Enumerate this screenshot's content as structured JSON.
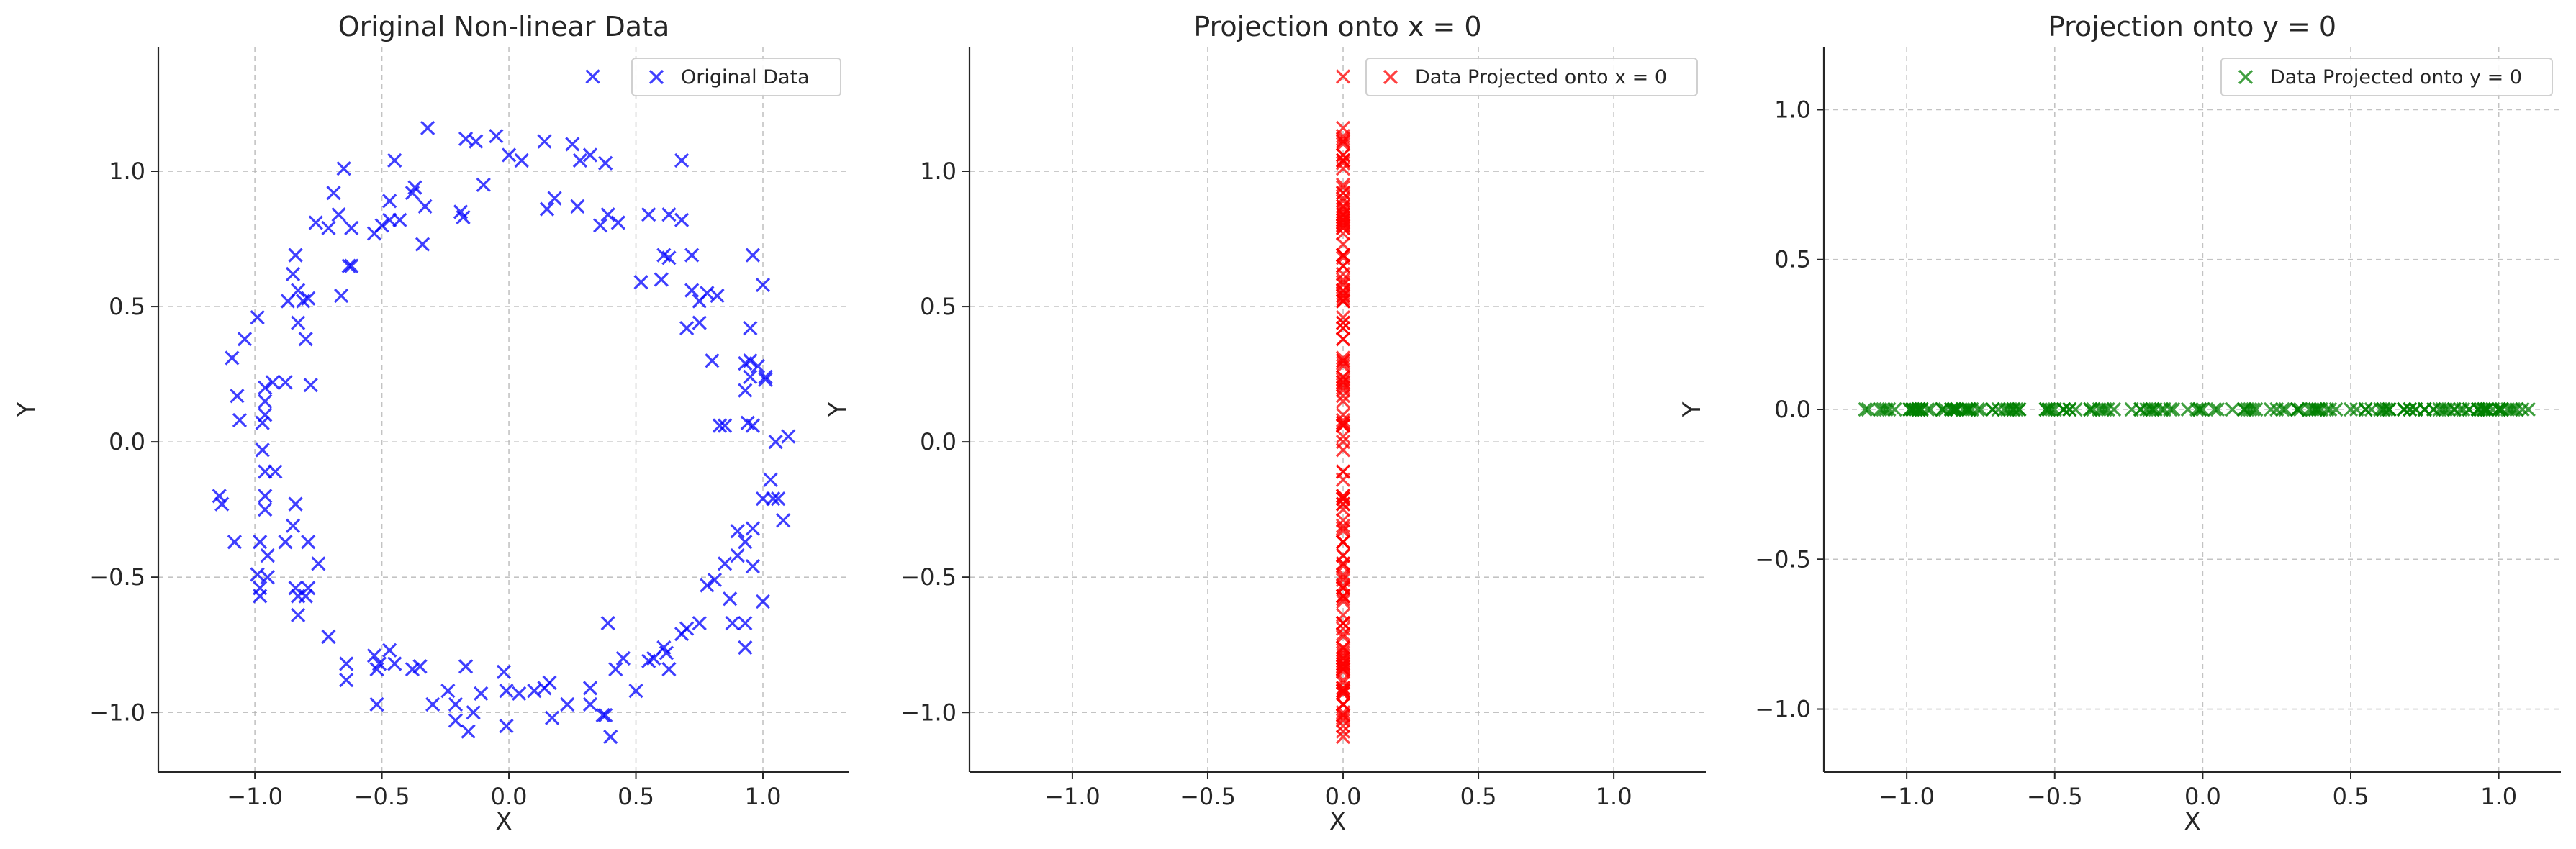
{
  "chart_data": [
    {
      "type": "scatter",
      "title": "Original Non-linear Data",
      "xlabel": "X",
      "ylabel": "Y",
      "xlim": [
        -1.38,
        1.34
      ],
      "ylim": [
        -1.22,
        1.46
      ],
      "xticks": [
        -1.0,
        -0.5,
        0.0,
        0.5,
        1.0
      ],
      "xtick_labels": [
        "−1.0",
        "−0.5",
        "0.0",
        "0.5",
        "1.0"
      ],
      "yticks": [
        -1.0,
        -0.5,
        0.0,
        0.5,
        1.0
      ],
      "ytick_labels": [
        "−1.0",
        "−0.5",
        "0.0",
        "0.5",
        "1.0"
      ],
      "grid": true,
      "legend_position": "top-right",
      "marker": "x",
      "series": [
        {
          "name": "Original Data",
          "color": "#0000ff",
          "points": [
            [
              0.33,
              1.35
            ],
            [
              -0.32,
              1.16
            ],
            [
              -0.17,
              1.12
            ],
            [
              -0.13,
              1.11
            ],
            [
              -0.05,
              1.13
            ],
            [
              0.05,
              1.04
            ],
            [
              0.0,
              1.06
            ],
            [
              0.14,
              1.11
            ],
            [
              0.25,
              1.1
            ],
            [
              0.28,
              1.04
            ],
            [
              0.32,
              1.06
            ],
            [
              0.38,
              1.03
            ],
            [
              0.68,
              1.04
            ],
            [
              -0.65,
              1.01
            ],
            [
              -0.45,
              1.04
            ],
            [
              -0.37,
              0.94
            ],
            [
              -0.33,
              0.87
            ],
            [
              -0.38,
              0.92
            ],
            [
              -0.19,
              0.85
            ],
            [
              -0.18,
              0.83
            ],
            [
              -0.1,
              0.95
            ],
            [
              0.15,
              0.86
            ],
            [
              0.18,
              0.9
            ],
            [
              0.27,
              0.87
            ],
            [
              0.36,
              0.8
            ],
            [
              0.39,
              0.84
            ],
            [
              0.43,
              0.81
            ],
            [
              0.55,
              0.84
            ],
            [
              0.63,
              0.84
            ],
            [
              0.68,
              0.82
            ],
            [
              -0.69,
              0.92
            ],
            [
              -0.67,
              0.84
            ],
            [
              -0.71,
              0.79
            ],
            [
              -0.62,
              0.79
            ],
            [
              -0.53,
              0.77
            ],
            [
              -0.5,
              0.8
            ],
            [
              -0.47,
              0.82
            ],
            [
              -0.43,
              0.82
            ],
            [
              -0.47,
              0.89
            ],
            [
              -0.34,
              0.73
            ],
            [
              -0.76,
              0.81
            ],
            [
              -0.62,
              0.65
            ],
            [
              -0.63,
              0.65
            ],
            [
              -0.66,
              0.54
            ],
            [
              0.52,
              0.59
            ],
            [
              0.6,
              0.6
            ],
            [
              0.61,
              0.69
            ],
            [
              0.63,
              0.68
            ],
            [
              0.72,
              0.69
            ],
            [
              0.72,
              0.56
            ],
            [
              0.75,
              0.52
            ],
            [
              0.78,
              0.55
            ],
            [
              0.82,
              0.54
            ],
            [
              0.7,
              0.42
            ],
            [
              0.75,
              0.44
            ],
            [
              0.8,
              0.3
            ],
            [
              -0.84,
              0.69
            ],
            [
              -0.85,
              0.62
            ],
            [
              -0.83,
              0.56
            ],
            [
              -0.87,
              0.52
            ],
            [
              -0.79,
              0.53
            ],
            [
              -0.81,
              0.52
            ],
            [
              -0.83,
              0.44
            ],
            [
              -0.8,
              0.38
            ],
            [
              -0.99,
              0.46
            ],
            [
              -1.04,
              0.38
            ],
            [
              -1.09,
              0.31
            ],
            [
              -0.96,
              0.2
            ],
            [
              -0.93,
              0.22
            ],
            [
              -0.88,
              0.22
            ],
            [
              -0.78,
              0.21
            ],
            [
              -1.07,
              0.17
            ],
            [
              -1.06,
              0.08
            ],
            [
              -0.96,
              0.15
            ],
            [
              -0.96,
              0.1
            ],
            [
              -0.97,
              0.07
            ],
            [
              -0.97,
              -0.03
            ],
            [
              -0.96,
              -0.11
            ],
            [
              -0.92,
              -0.11
            ],
            [
              -1.14,
              -0.2
            ],
            [
              -1.13,
              -0.23
            ],
            [
              -0.96,
              -0.2
            ],
            [
              -0.96,
              -0.25
            ],
            [
              -0.84,
              -0.23
            ],
            [
              -0.85,
              -0.31
            ],
            [
              -0.79,
              -0.37
            ],
            [
              -0.88,
              -0.37
            ],
            [
              -1.08,
              -0.37
            ],
            [
              -0.98,
              -0.37
            ],
            [
              -0.95,
              -0.42
            ],
            [
              -0.99,
              -0.49
            ],
            [
              -0.98,
              -0.54
            ],
            [
              -0.98,
              -0.57
            ],
            [
              -0.95,
              -0.5
            ],
            [
              -0.84,
              -0.54
            ],
            [
              -0.83,
              -0.57
            ],
            [
              -0.8,
              -0.57
            ],
            [
              -0.79,
              -0.54
            ],
            [
              -0.83,
              -0.64
            ],
            [
              -0.75,
              -0.45
            ],
            [
              -0.71,
              -0.72
            ],
            [
              -0.64,
              -0.82
            ],
            [
              -0.64,
              -0.88
            ],
            [
              -0.53,
              -0.79
            ],
            [
              -0.51,
              -0.82
            ],
            [
              -0.52,
              -0.84
            ],
            [
              -0.47,
              -0.77
            ],
            [
              -0.45,
              -0.82
            ],
            [
              -0.38,
              -0.84
            ],
            [
              -0.35,
              -0.83
            ],
            [
              -0.52,
              -0.97
            ],
            [
              -0.3,
              -0.97
            ],
            [
              -0.24,
              -0.92
            ],
            [
              -0.21,
              -0.97
            ],
            [
              -0.21,
              -1.03
            ],
            [
              -0.17,
              -0.83
            ],
            [
              -0.16,
              -1.07
            ],
            [
              -0.14,
              -1.0
            ],
            [
              -0.11,
              -0.93
            ],
            [
              -0.02,
              -0.85
            ],
            [
              -0.01,
              -0.92
            ],
            [
              -0.01,
              -1.05
            ],
            [
              0.04,
              -0.93
            ],
            [
              0.1,
              -0.92
            ],
            [
              0.14,
              -0.91
            ],
            [
              0.16,
              -0.89
            ],
            [
              0.17,
              -1.02
            ],
            [
              0.23,
              -0.97
            ],
            [
              0.32,
              -0.91
            ],
            [
              0.32,
              -0.97
            ],
            [
              0.37,
              -1.01
            ],
            [
              0.38,
              -1.01
            ],
            [
              0.4,
              -1.09
            ],
            [
              0.39,
              -0.67
            ],
            [
              0.42,
              -0.84
            ],
            [
              0.45,
              -0.8
            ],
            [
              0.5,
              -0.92
            ],
            [
              0.55,
              -0.81
            ],
            [
              0.57,
              -0.8
            ],
            [
              0.61,
              -0.76
            ],
            [
              0.62,
              -0.78
            ],
            [
              0.63,
              -0.84
            ],
            [
              0.68,
              -0.71
            ],
            [
              0.7,
              -0.69
            ],
            [
              0.75,
              -0.67
            ],
            [
              0.78,
              -0.53
            ],
            [
              0.81,
              -0.51
            ],
            [
              0.85,
              -0.45
            ],
            [
              0.87,
              -0.58
            ],
            [
              0.88,
              -0.67
            ],
            [
              0.9,
              -0.33
            ],
            [
              0.9,
              -0.42
            ],
            [
              0.93,
              -0.37
            ],
            [
              0.93,
              -0.67
            ],
            [
              0.93,
              -0.76
            ],
            [
              0.96,
              -0.46
            ],
            [
              1.0,
              -0.59
            ],
            [
              0.96,
              -0.32
            ],
            [
              1.0,
              -0.21
            ],
            [
              1.04,
              -0.21
            ],
            [
              1.06,
              -0.21
            ],
            [
              1.08,
              -0.29
            ],
            [
              1.03,
              -0.14
            ],
            [
              0.93,
              0.29
            ],
            [
              0.95,
              0.3
            ],
            [
              0.95,
              0.24
            ],
            [
              0.98,
              0.28
            ],
            [
              1.01,
              0.23
            ],
            [
              1.01,
              0.24
            ],
            [
              0.94,
              0.07
            ],
            [
              0.96,
              0.06
            ],
            [
              1.05,
              0.0
            ],
            [
              1.1,
              0.02
            ],
            [
              0.83,
              0.06
            ],
            [
              0.85,
              0.06
            ],
            [
              0.93,
              0.19
            ],
            [
              0.95,
              0.42
            ],
            [
              0.96,
              0.69
            ],
            [
              1.0,
              0.58
            ]
          ]
        }
      ]
    },
    {
      "type": "scatter",
      "title": "Projection onto x = 0",
      "xlabel": "X",
      "ylabel": "Y",
      "xlim": [
        -1.38,
        1.34
      ],
      "ylim": [
        -1.22,
        1.46
      ],
      "xticks": [
        -1.0,
        -0.5,
        0.0,
        0.5,
        1.0
      ],
      "xtick_labels": [
        "−1.0",
        "−0.5",
        "0.0",
        "0.5",
        "1.0"
      ],
      "yticks": [
        -1.0,
        -0.5,
        0.0,
        0.5,
        1.0
      ],
      "ytick_labels": [
        "−1.0",
        "−0.5",
        "0.0",
        "0.5",
        "1.0"
      ],
      "grid": true,
      "legend_position": "top-right",
      "marker": "x",
      "projection": "x",
      "series": [
        {
          "name": "Data Projected onto x = 0",
          "color": "#ff0000"
        }
      ]
    },
    {
      "type": "scatter",
      "title": "Projection onto y = 0",
      "xlabel": "X",
      "ylabel": "Y",
      "xlim": [
        -1.28,
        1.21
      ],
      "ylim": [
        -1.21,
        1.21
      ],
      "xticks": [
        -1.0,
        -0.5,
        0.0,
        0.5,
        1.0
      ],
      "xtick_labels": [
        "−1.0",
        "−0.5",
        "0.0",
        "0.5",
        "1.0"
      ],
      "yticks": [
        -1.0,
        -0.5,
        0.0,
        0.5,
        1.0
      ],
      "ytick_labels": [
        "−1.0",
        "−0.5",
        "0.0",
        "0.5",
        "1.0"
      ],
      "grid": true,
      "legend_position": "top-right",
      "marker": "x",
      "projection": "y",
      "series": [
        {
          "name": "Data Projected onto y = 0",
          "color": "#008000"
        }
      ]
    }
  ]
}
